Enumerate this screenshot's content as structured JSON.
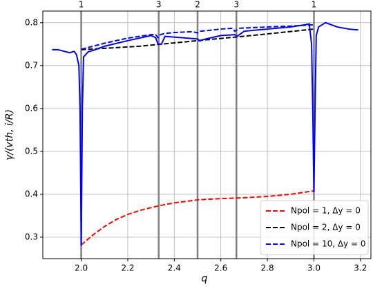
{
  "chart_data": {
    "type": "line",
    "xlabel": "q",
    "ylabel": "γ/(vth, i/R)",
    "xlim": [
      1.835,
      3.245
    ],
    "ylim": [
      0.25,
      0.827
    ],
    "xticks": [
      {
        "value": 2,
        "label": "2.0"
      },
      2.2,
      2.4,
      2.6,
      2.8,
      {
        "value": 3,
        "label": "3.0"
      },
      3.2
    ],
    "yticks": [
      0.3,
      0.4,
      0.5,
      0.6,
      0.7,
      0.8
    ],
    "grid": true,
    "legend": "lower right",
    "rational_surfaces": [
      {
        "q": 2,
        "label": "1"
      },
      {
        "q": 2.333,
        "label": "3"
      },
      {
        "q": 2.5,
        "label": "2"
      },
      {
        "q": 2.667,
        "label": "3"
      },
      {
        "q": 3,
        "label": "1"
      }
    ],
    "series": [
      {
        "name": "Npol = 1, Δy = 0",
        "color": "#ff0000",
        "dashed": true,
        "x": [
          2.0,
          2.05,
          2.1,
          2.15,
          2.2,
          2.25,
          2.3,
          2.35,
          2.4,
          2.5,
          2.6,
          2.7,
          2.8,
          2.9,
          3.0
        ],
        "y": [
          0.282,
          0.305,
          0.325,
          0.341,
          0.353,
          0.362,
          0.369,
          0.375,
          0.38,
          0.387,
          0.39,
          0.392,
          0.395,
          0.4,
          0.408
        ]
      },
      {
        "name": "Npol = 2, Δy = 0",
        "color": "#000000",
        "dashed": true,
        "x": [
          2.0,
          2.25,
          2.5,
          2.75,
          3.0
        ],
        "y": [
          0.737,
          0.745,
          0.758,
          0.771,
          0.785
        ]
      },
      {
        "name": "Npol = 10, Δy = 0",
        "color": "#0000ff",
        "dashed": true,
        "x": [
          2.0,
          2.1,
          2.2,
          2.3,
          2.32,
          2.33,
          2.34,
          2.36,
          2.4,
          2.48,
          2.5,
          2.51,
          2.55,
          2.6,
          2.65,
          2.66,
          2.68,
          2.8,
          2.9,
          3.0
        ],
        "y": [
          0.738,
          0.752,
          0.764,
          0.772,
          0.772,
          0.765,
          0.772,
          0.775,
          0.777,
          0.779,
          0.776,
          0.78,
          0.782,
          0.785,
          0.787,
          0.78,
          0.787,
          0.79,
          0.792,
          0.795
        ]
      },
      {
        "color": "#0000ff",
        "dashed": false,
        "x": [
          1.875,
          1.9,
          1.95,
          1.97,
          1.98,
          1.99,
          1.995,
          2.0,
          2.005,
          2.01,
          2.03,
          2.05,
          2.1,
          2.2,
          2.3,
          2.32,
          2.33,
          2.345,
          2.36,
          2.5,
          2.51,
          2.52,
          2.6,
          2.66,
          2.67,
          2.7,
          2.8,
          2.9,
          2.96,
          2.98,
          2.99,
          2.995,
          3.0,
          3.005,
          3.01,
          3.02,
          3.05,
          3.1,
          3.15,
          3.19
        ],
        "y": [
          0.737,
          0.737,
          0.73,
          0.733,
          0.725,
          0.7,
          0.6,
          0.28,
          0.6,
          0.72,
          0.732,
          0.735,
          0.745,
          0.758,
          0.77,
          0.765,
          0.75,
          0.75,
          0.768,
          0.762,
          0.757,
          0.76,
          0.77,
          0.772,
          0.768,
          0.78,
          0.785,
          0.79,
          0.795,
          0.797,
          0.75,
          0.6,
          0.405,
          0.6,
          0.77,
          0.79,
          0.8,
          0.79,
          0.785,
          0.783
        ]
      }
    ]
  }
}
